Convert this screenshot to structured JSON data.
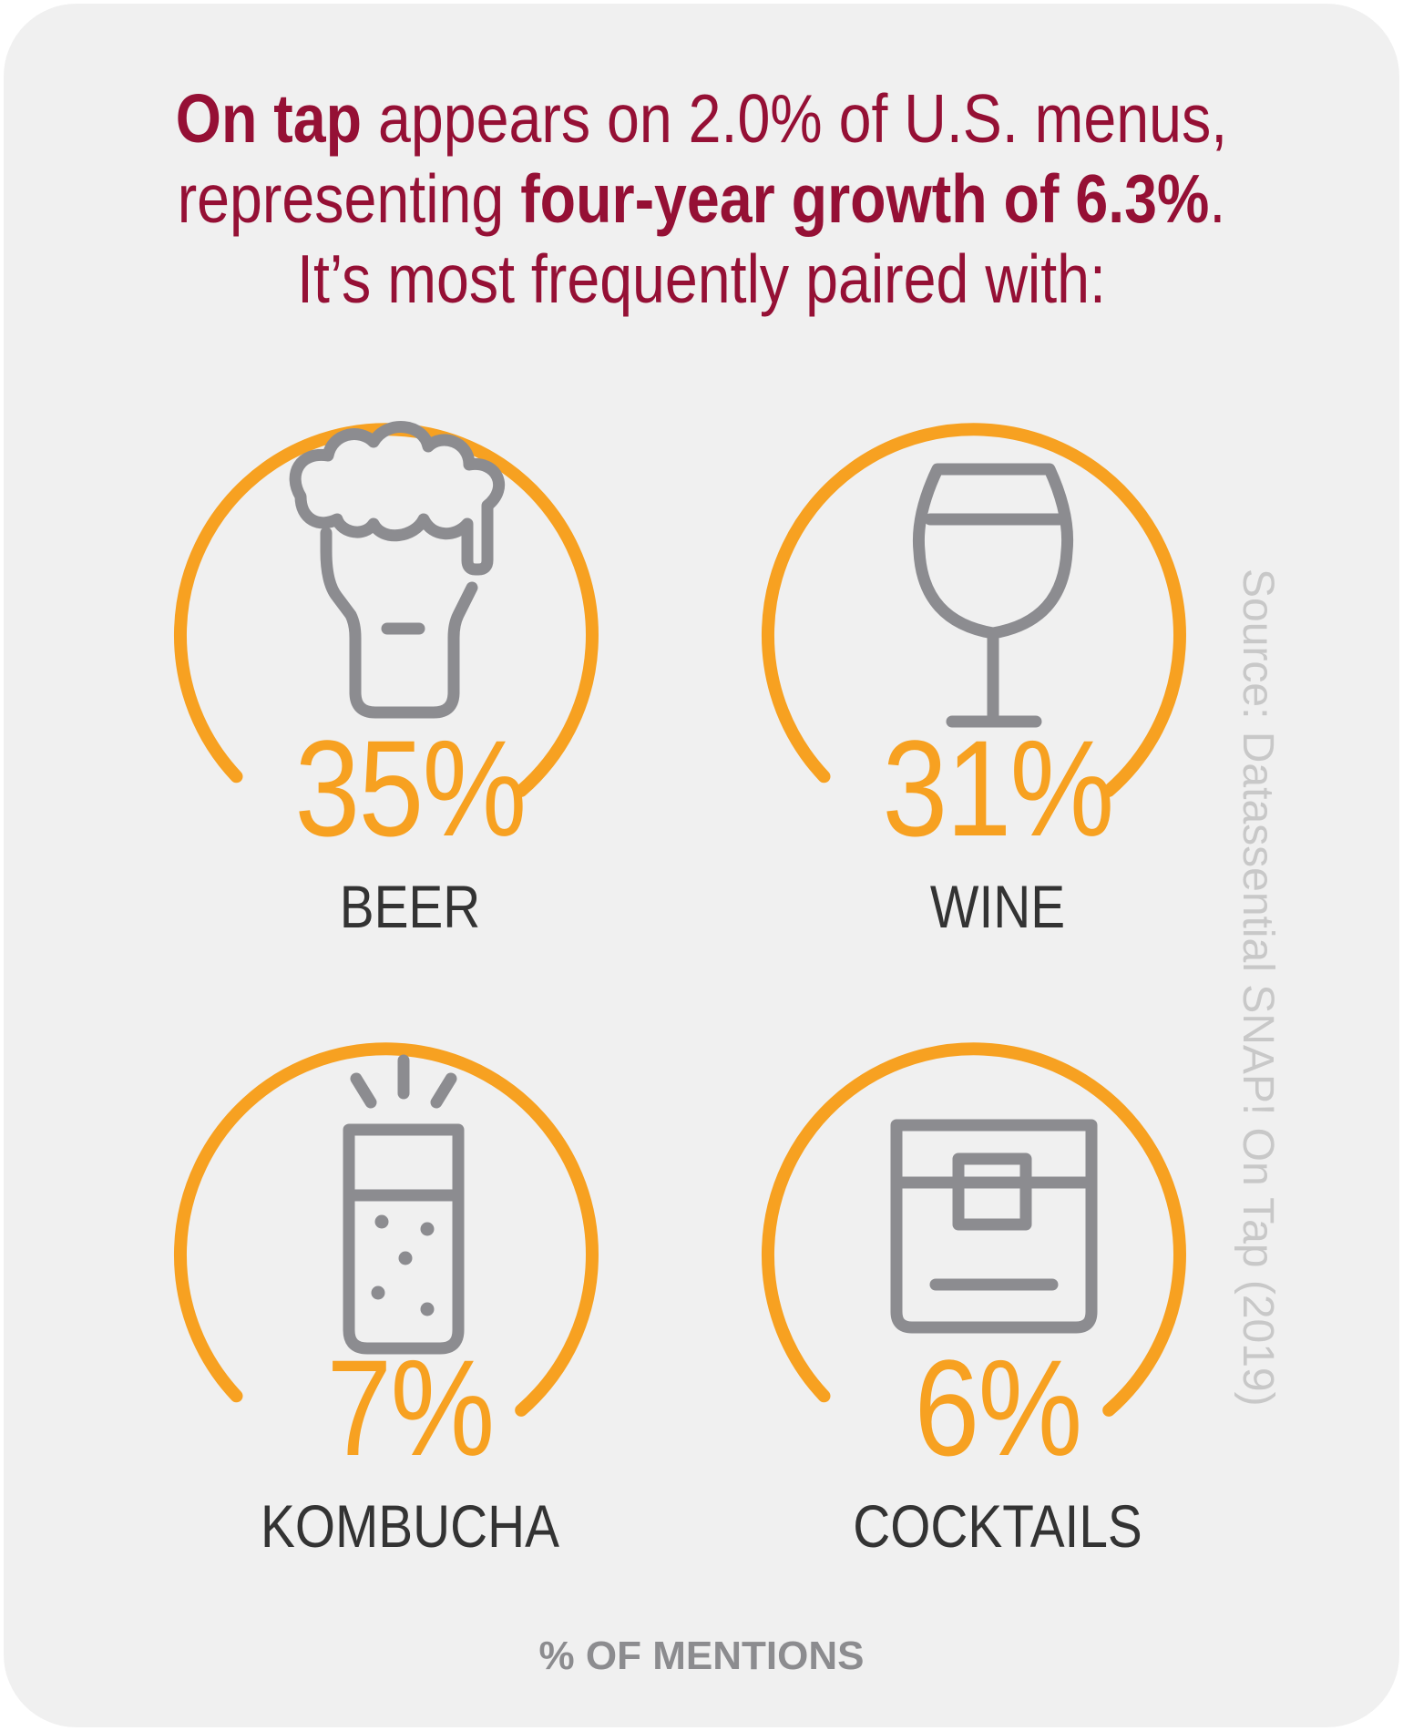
{
  "headline": {
    "line1_bold": "On tap",
    "line1_rest": " appears on 2.0% of U.S. menus,",
    "line2_start": "representing ",
    "line2_bold": "four-year growth of 6.3%",
    "line2_end": ".",
    "line3": "It’s most frequently paired with:"
  },
  "colors": {
    "accent": "#f7a121",
    "headline": "#951035",
    "icon": "#8c8c90",
    "background": "#f0f0f0"
  },
  "items": [
    {
      "value": "35%",
      "label": "BEER",
      "icon": "beer-mug-icon"
    },
    {
      "value": "31%",
      "label": "WINE",
      "icon": "wine-glass-icon"
    },
    {
      "value": "7%",
      "label": "KOMBUCHA",
      "icon": "kombucha-glass-icon"
    },
    {
      "value": "6%",
      "label": "COCKTAILS",
      "icon": "cocktail-glass-icon"
    }
  ],
  "footer": "% OF MENTIONS",
  "source": "Source: Datassential SNAP! On Tap (2019)"
}
